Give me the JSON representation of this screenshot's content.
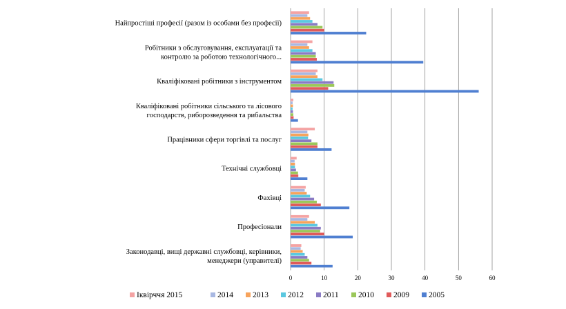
{
  "chart_data": {
    "type": "bar",
    "orientation": "horizontal",
    "title": "",
    "xlabel": "",
    "ylabel": "",
    "xlim": [
      0,
      60
    ],
    "xticks": [
      0,
      10,
      20,
      30,
      40,
      50,
      60
    ],
    "grid": "vertical",
    "legend_position": "bottom",
    "categories": [
      [
        "Найпростіші професії (разом із особами без професії)"
      ],
      [
        "Робітники з обслуговування, експлуатації та",
        "контролю за роботою технологічного..."
      ],
      [
        "Кваліфіковані робітники з інструментом"
      ],
      [
        "Кваліфіковані робітники сільського та лісового",
        "господарств, риборозведення та рибальства"
      ],
      [
        "Працівники сфери торгівлі та послуг"
      ],
      [
        "Технічні службовці"
      ],
      [
        "Фахівці"
      ],
      [
        "Професіонали"
      ],
      [
        "Законодавці, вищі державні службовці, керівники,",
        "менеджери (управителі)"
      ]
    ],
    "series": [
      {
        "name": "Іквірччя 2015",
        "color": "#f4a3a3",
        "values": [
          5.5,
          6.5,
          8,
          0.8,
          7.2,
          1.8,
          4.5,
          5.5,
          3.2
        ]
      },
      {
        "name": "2014",
        "color": "#a8b8e2",
        "values": [
          5,
          5,
          7.5,
          0.6,
          5,
          1.2,
          4.2,
          5,
          3
        ]
      },
      {
        "name": "2013",
        "color": "#f7a35c",
        "values": [
          5.8,
          5.5,
          8,
          0.7,
          5.3,
          1.3,
          4.8,
          7.2,
          3.6
        ]
      },
      {
        "name": "2012",
        "color": "#5bc8e0",
        "values": [
          6.5,
          6.5,
          9.5,
          0.6,
          5.2,
          1.3,
          5.8,
          8,
          4.2
        ]
      },
      {
        "name": "2011",
        "color": "#8a7bc4",
        "values": [
          8,
          7.5,
          12.8,
          0.7,
          6.2,
          1.6,
          7,
          9,
          5
        ]
      },
      {
        "name": "2010",
        "color": "#9bc75a",
        "values": [
          9.5,
          7.5,
          13,
          0.8,
          8,
          2.2,
          7.8,
          8.8,
          5.5
        ]
      },
      {
        "name": "2009",
        "color": "#e05a5a",
        "values": [
          10,
          7.8,
          11.2,
          0.9,
          8,
          2.3,
          9,
          10,
          6.2
        ]
      },
      {
        "name": "2005",
        "color": "#4f7fd1",
        "values": [
          22.5,
          39.5,
          56,
          2.2,
          12.2,
          5,
          17.5,
          18.5,
          12.5
        ]
      }
    ]
  }
}
